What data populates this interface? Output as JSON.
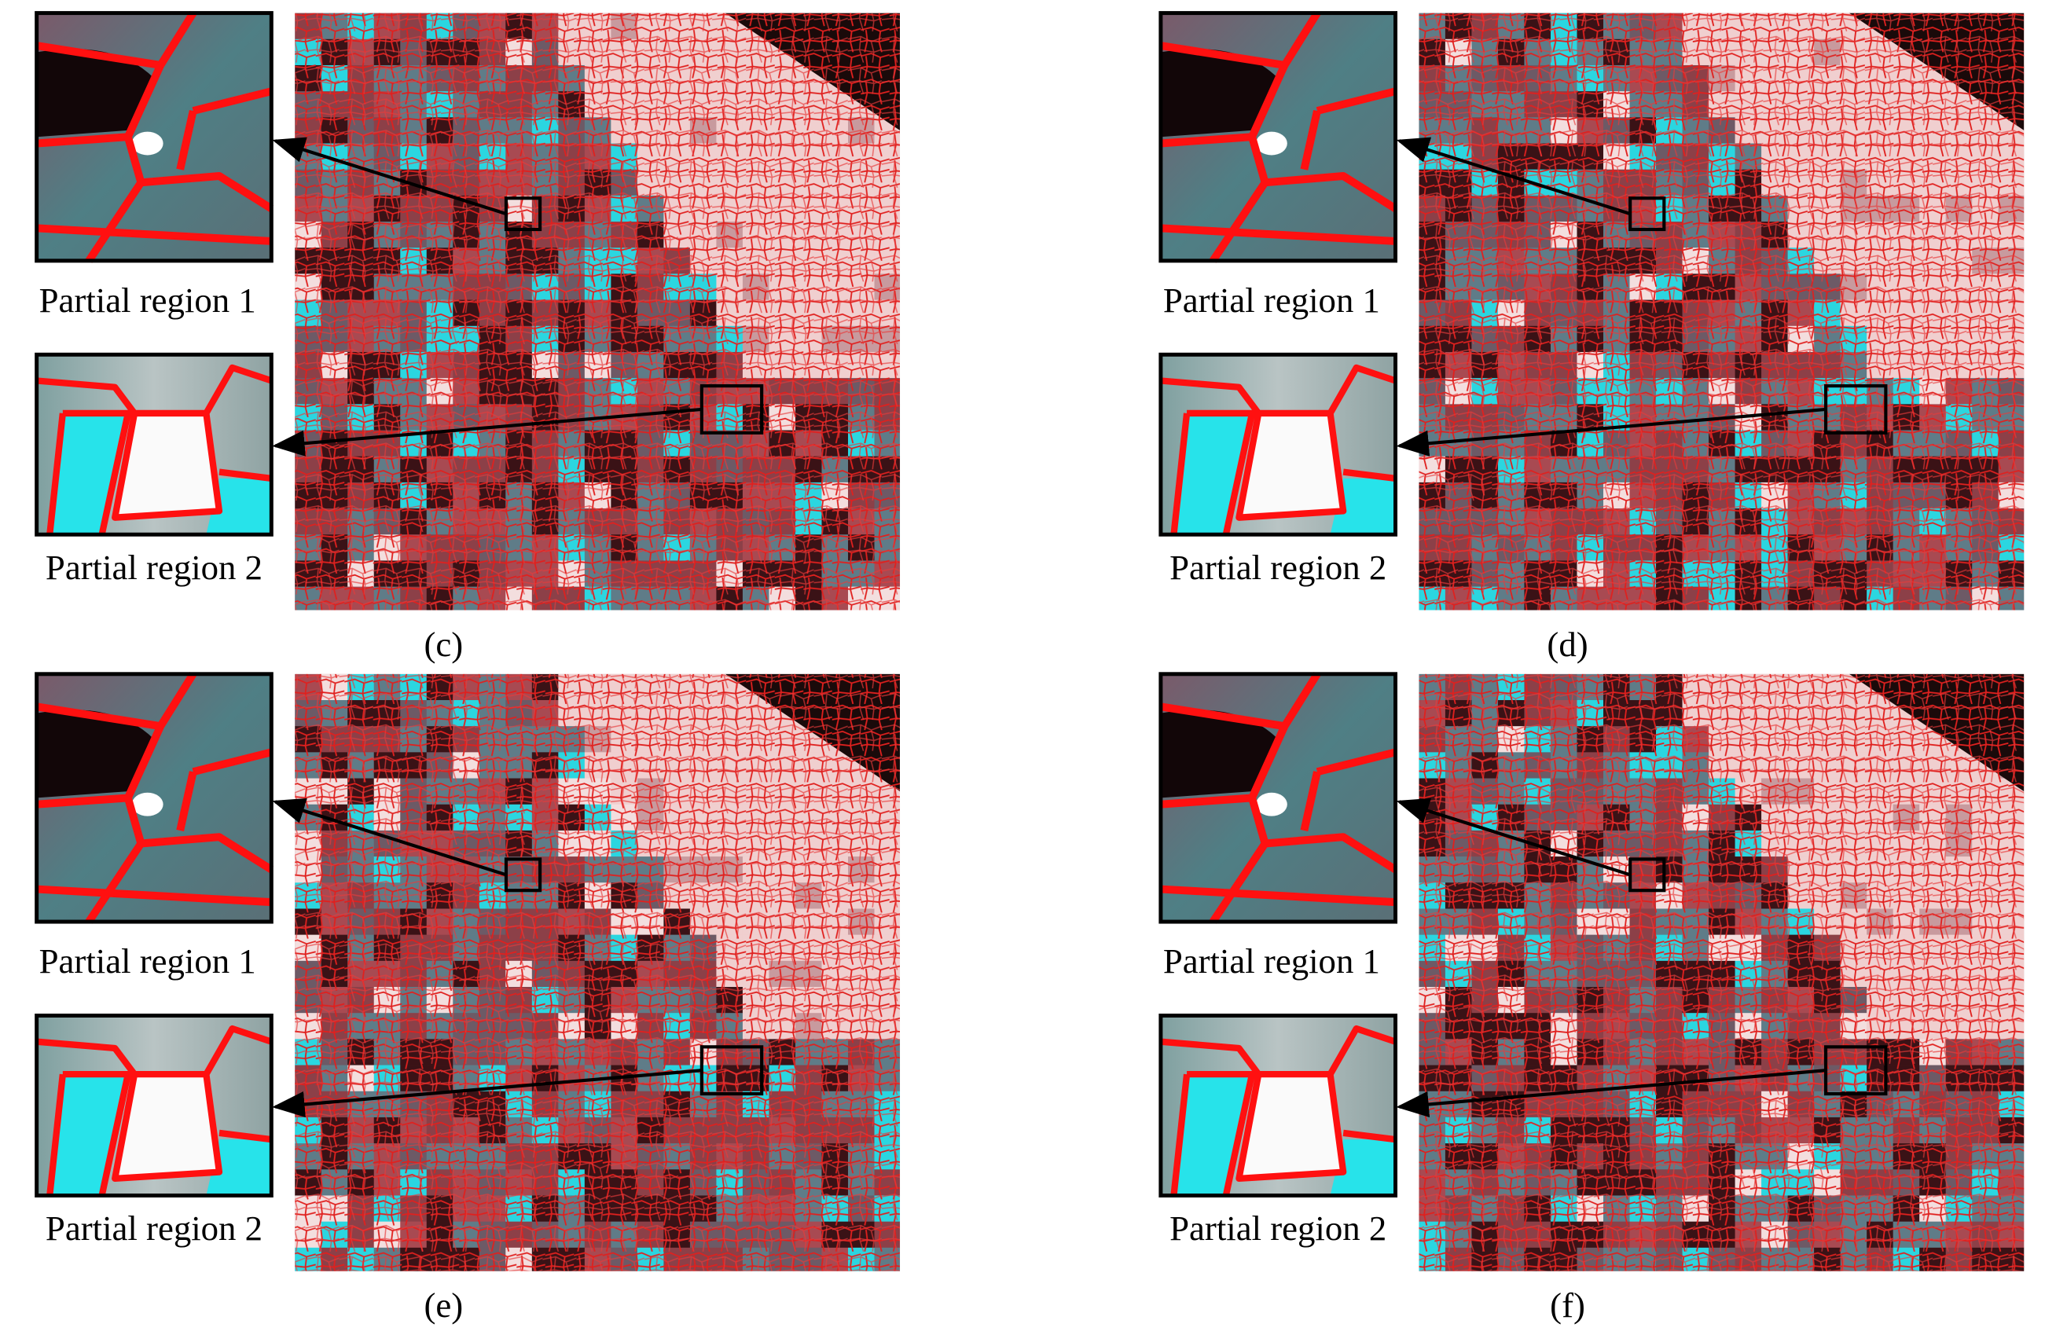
{
  "panels": [
    {
      "caption": "(c)",
      "insets": [
        {
          "label": "Partial region 1"
        },
        {
          "label": "Partial region 2"
        }
      ]
    },
    {
      "caption": "(d)",
      "insets": [
        {
          "label": "Partial region 1"
        },
        {
          "label": "Partial region 2"
        }
      ]
    },
    {
      "caption": "(e)",
      "insets": [
        {
          "label": "Partial region 1"
        },
        {
          "label": "Partial region 2"
        }
      ]
    },
    {
      "caption": "(f)",
      "insets": [
        {
          "label": "Partial region 1"
        },
        {
          "label": "Partial region 2"
        }
      ]
    }
  ]
}
